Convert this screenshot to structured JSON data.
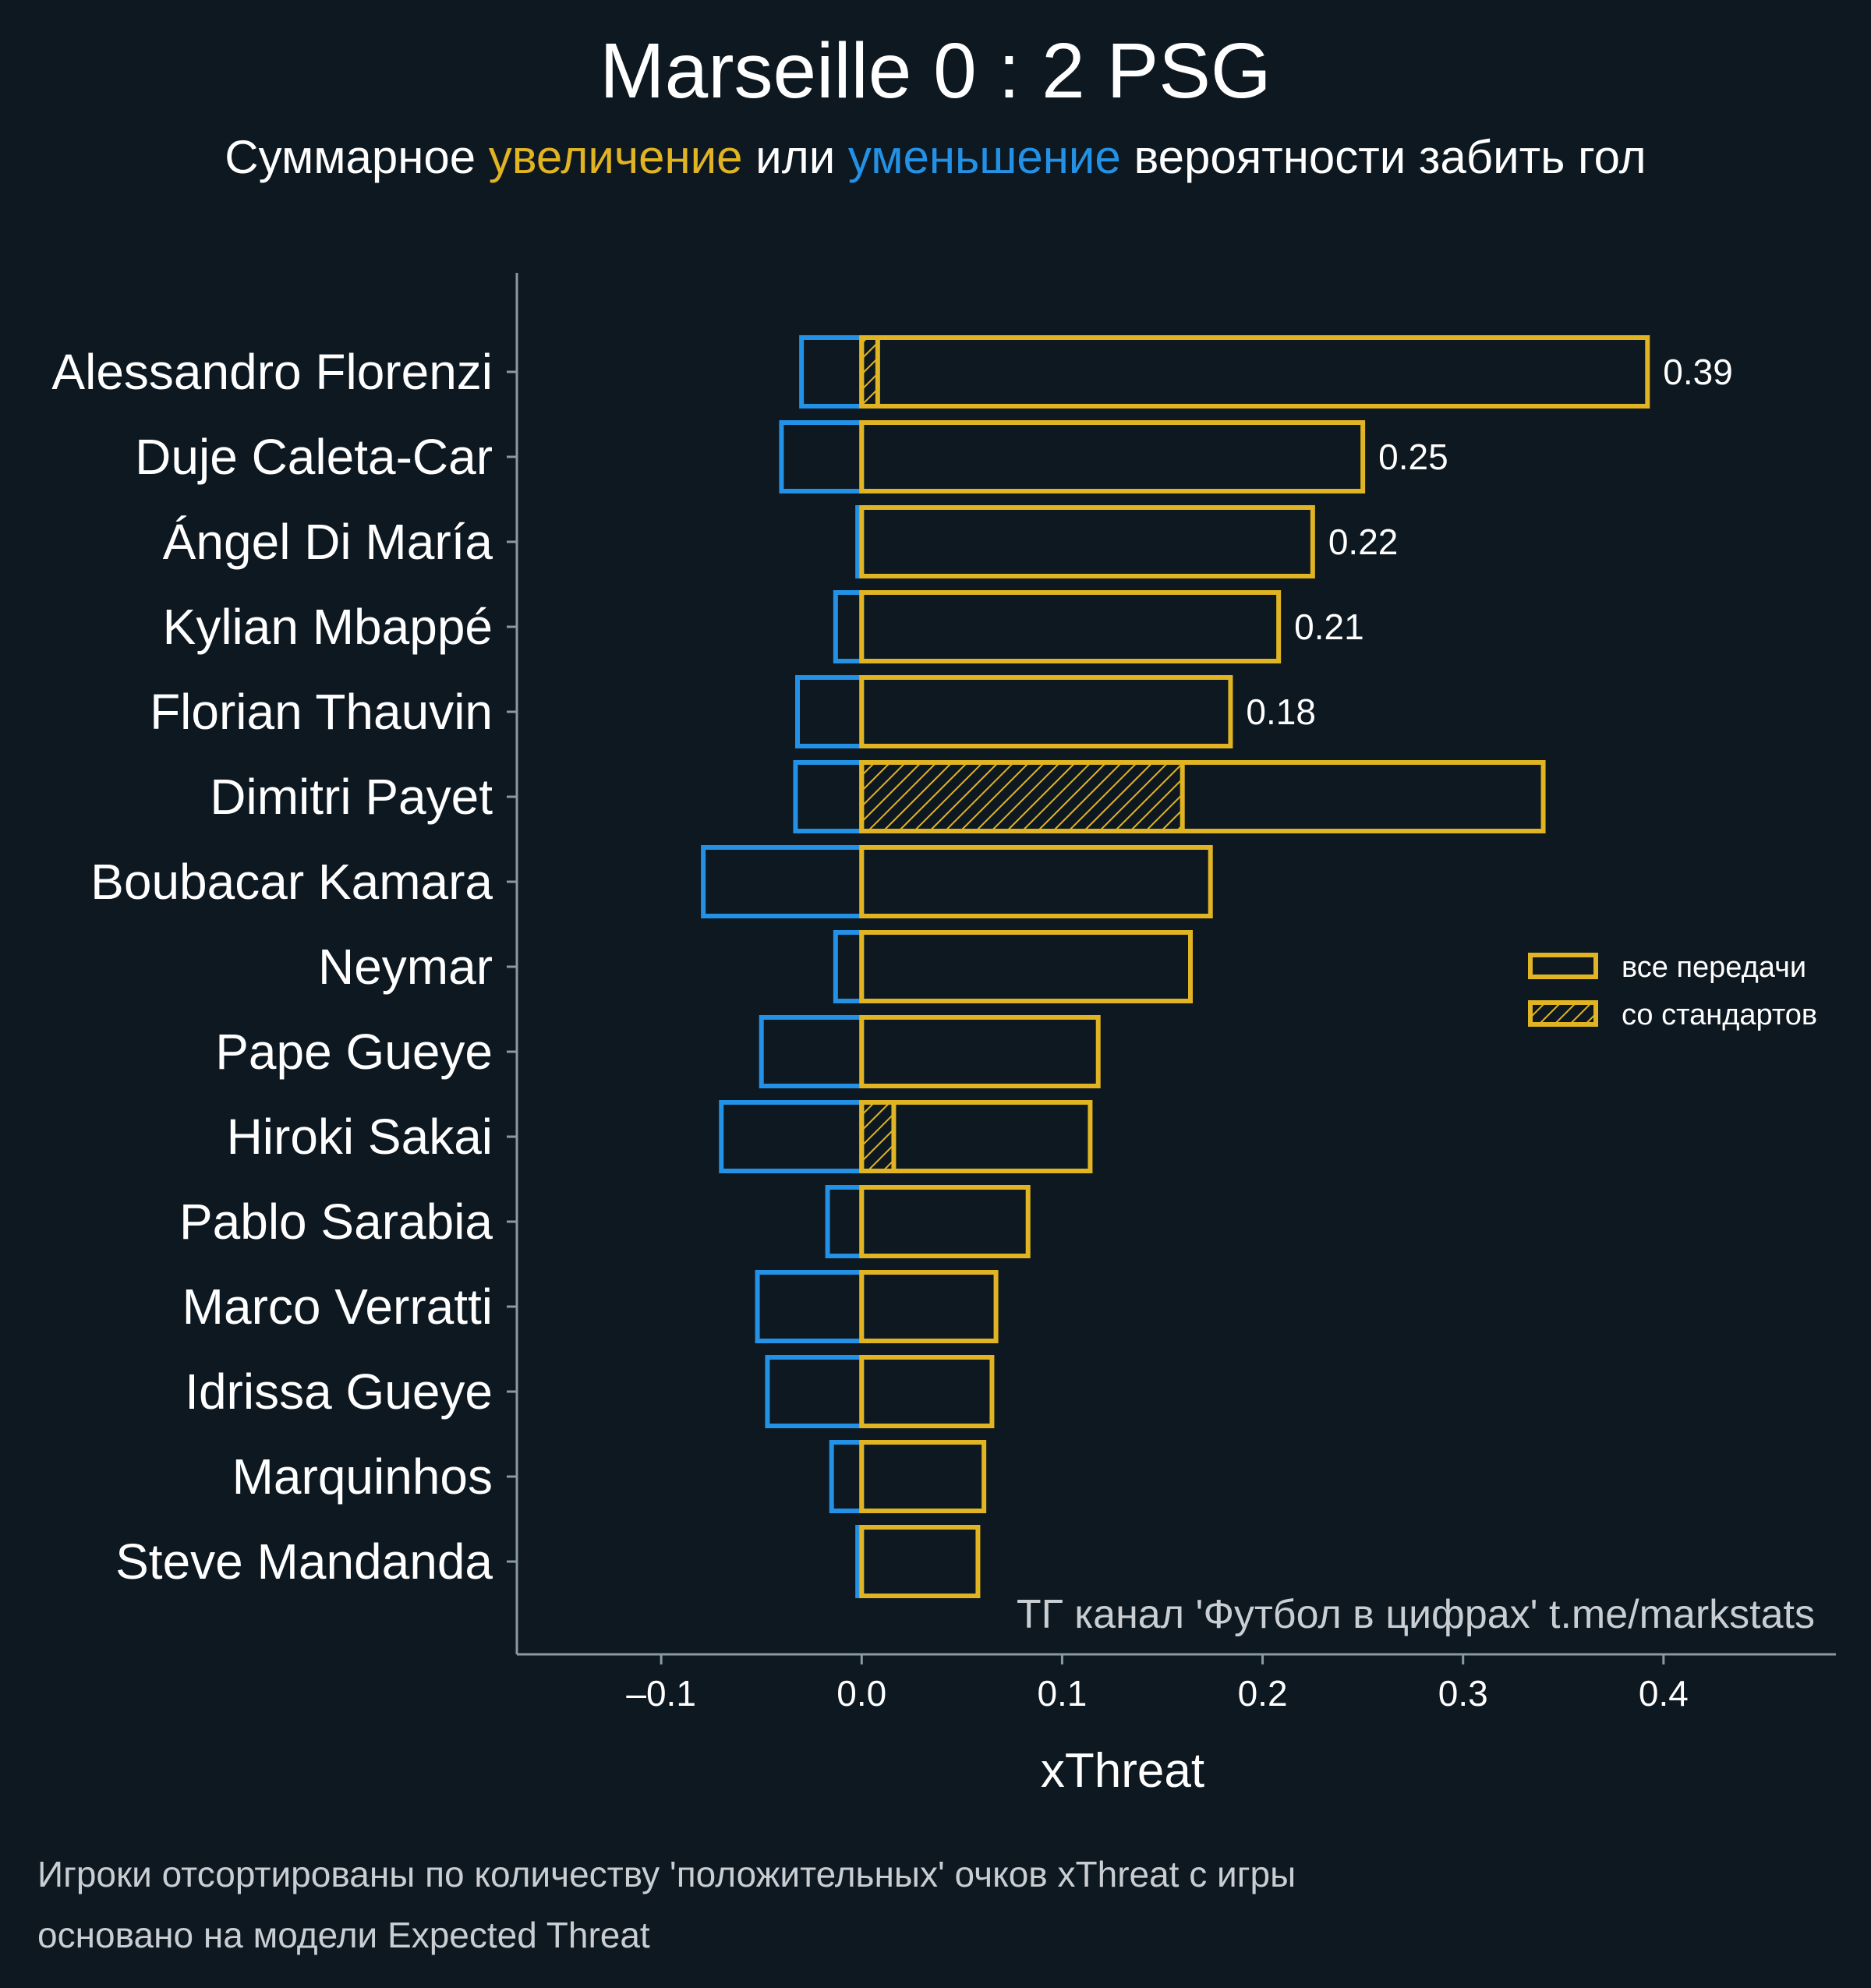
{
  "colors": {
    "background": "#0e1820",
    "positive": "#e0b422",
    "negative": "#2392e6",
    "text": "#ffffff",
    "muted": "#c9ced3",
    "axis": "#8a9aa4"
  },
  "header": {
    "title": "Marseille 0 : 2 PSG",
    "subtitle_part1": "Суммарное ",
    "subtitle_increase": "увеличение",
    "subtitle_part2": " или ",
    "subtitle_decrease": "уменьшение",
    "subtitle_part3": " вероятности забить гол"
  },
  "watermark": "ТГ канал 'Футбол в цифрах'  t.me/markstats",
  "footer": {
    "line1": "Игроки отсортированы по количеству 'положительных' очков xThreat с игры",
    "line2": "основано на модели Expected Threat"
  },
  "chart_data": {
    "type": "bar",
    "orientation": "horizontal",
    "xlabel": "xThreat",
    "ylabel": "",
    "xlim": [
      -0.172,
      0.486
    ],
    "xticks": [
      -0.1,
      0.0,
      0.1,
      0.2,
      0.3,
      0.4
    ],
    "xtick_labels": [
      "–0.1",
      "0.0",
      "0.1",
      "0.2",
      "0.3",
      "0.4"
    ],
    "legend": {
      "placement": "right",
      "entries": [
        {
          "label": "все передачи",
          "style": "outline"
        },
        {
          "label": "со стандартов",
          "style": "hatched"
        }
      ]
    },
    "categories": [
      "Alessandro Florenzi",
      "Duje Caleta-Car",
      "Ángel Di María",
      "Kylian Mbappé",
      "Florian Thauvin",
      "Dimitri Payet",
      "Boubacar Kamara",
      "Neymar",
      "Pape Gueye",
      "Hiroki Sakai",
      "Pablo Sarabia",
      "Marco Verratti",
      "Idrissa Gueye",
      "Marquinhos",
      "Steve Mandanda"
    ],
    "series": [
      {
        "name": "все передачи",
        "positive": [
          0.392,
          0.25,
          0.225,
          0.208,
          0.184,
          0.34,
          0.174,
          0.164,
          0.118,
          0.114,
          0.083,
          0.067,
          0.065,
          0.061,
          0.058
        ],
        "negative": [
          -0.03,
          -0.04,
          -0.002,
          -0.013,
          -0.032,
          -0.033,
          -0.079,
          -0.013,
          -0.05,
          -0.07,
          -0.017,
          -0.052,
          -0.047,
          -0.015,
          -0.002
        ]
      },
      {
        "name": "со стандартов",
        "positive": [
          0.008,
          0,
          0,
          0,
          0,
          0.16,
          0,
          0,
          0,
          0.016,
          0,
          0,
          0,
          0,
          0
        ]
      }
    ],
    "data_labels": [
      "0.39",
      "0.25",
      "0.22",
      "0.21",
      "0.18",
      "",
      "",
      "",
      "",
      "",
      "",
      "",
      "",
      "",
      ""
    ]
  }
}
